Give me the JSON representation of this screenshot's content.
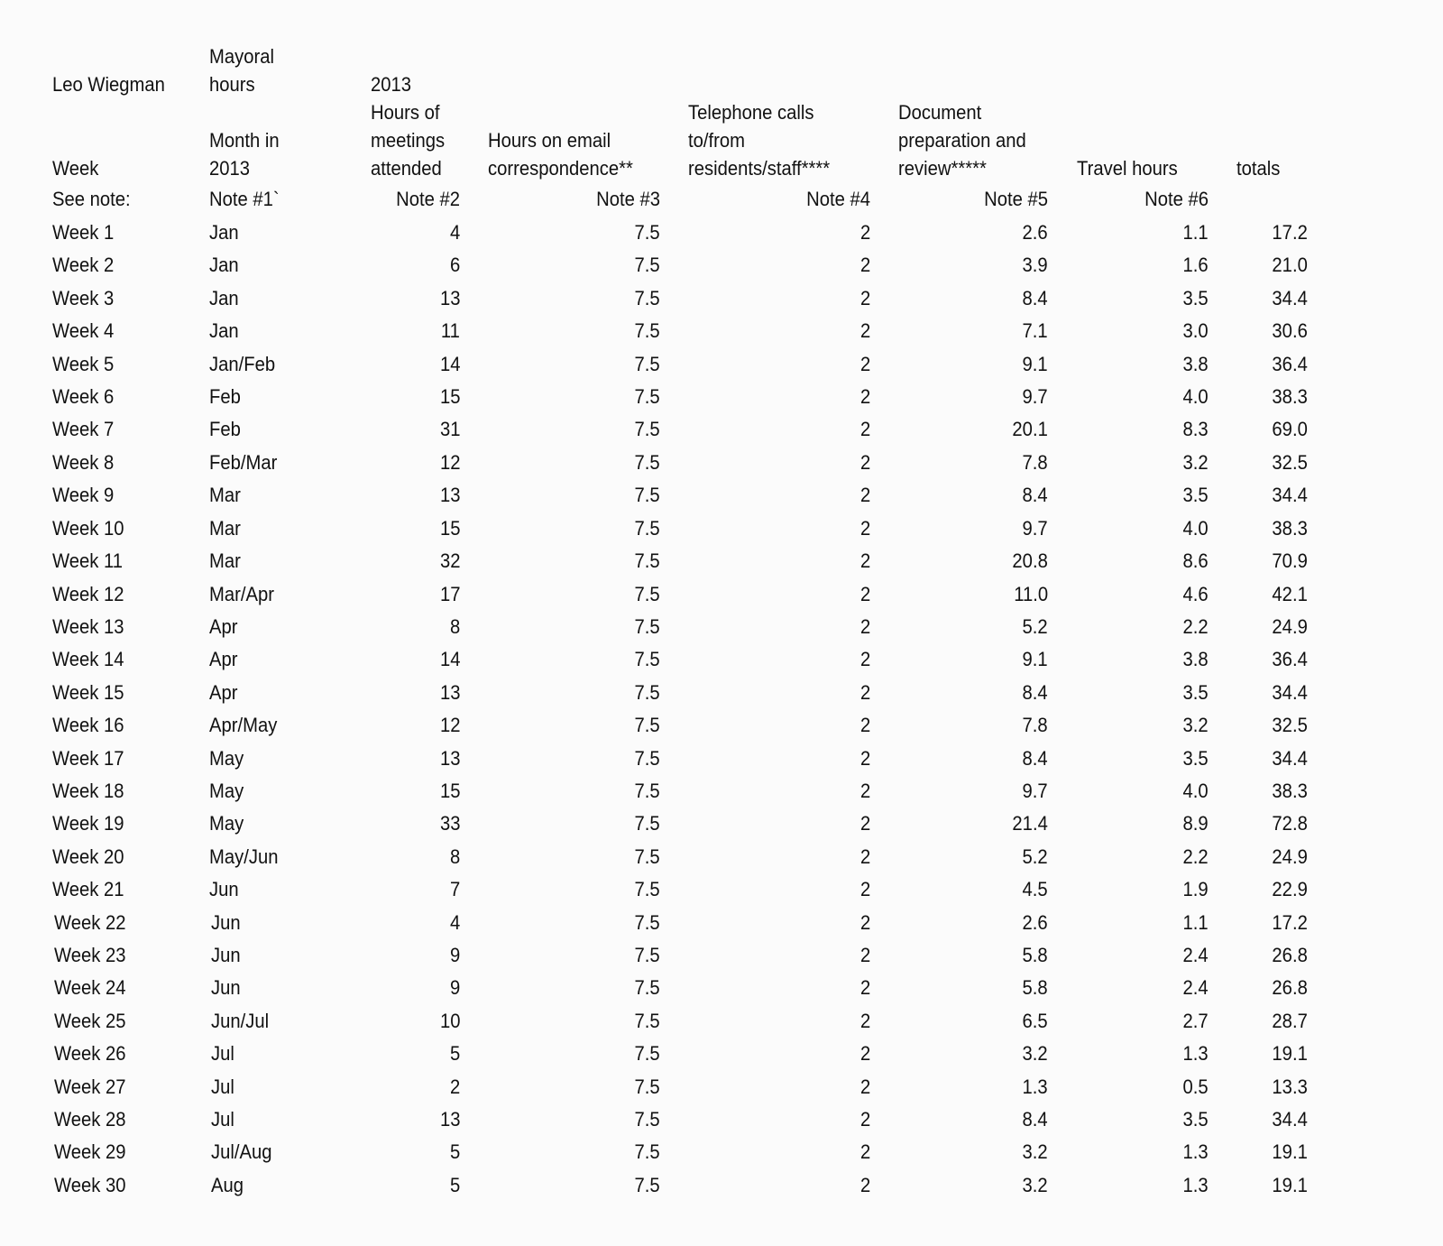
{
  "header": {
    "name": "Leo Wiegman",
    "mayoral_hours": "Mayoral\nhours",
    "week": "Week",
    "month": "Month in\n2013",
    "meetings": "2013\nHours of\nmeetings\nattended",
    "email": "Hours on email\ncorrespondence**",
    "phone": "Telephone calls\nto/from\nresidents/staff****",
    "document": "Document\npreparation and\nreview*****",
    "travel": "Travel hours",
    "totals": "totals"
  },
  "notes": {
    "label": "See note:",
    "month": "Note #1`",
    "meetings": "Note #2",
    "email": "Note #3",
    "phone": "Note #4",
    "document": "Note #5",
    "travel": "Note #6"
  },
  "rows": [
    [
      "Week 1",
      "Jan",
      "4",
      "7.5",
      "2",
      "2.6",
      "1.1",
      "17.2"
    ],
    [
      "Week 2",
      "Jan",
      "6",
      "7.5",
      "2",
      "3.9",
      "1.6",
      "21.0"
    ],
    [
      "Week 3",
      "Jan",
      "13",
      "7.5",
      "2",
      "8.4",
      "3.5",
      "34.4"
    ],
    [
      "Week 4",
      "Jan",
      "11",
      "7.5",
      "2",
      "7.1",
      "3.0",
      "30.6"
    ],
    [
      "Week 5",
      "Jan/Feb",
      "14",
      "7.5",
      "2",
      "9.1",
      "3.8",
      "36.4"
    ],
    [
      "Week 6",
      "Feb",
      "15",
      "7.5",
      "2",
      "9.7",
      "4.0",
      "38.3"
    ],
    [
      "Week 7",
      "Feb",
      "31",
      "7.5",
      "2",
      "20.1",
      "8.3",
      "69.0"
    ],
    [
      "Week 8",
      "Feb/Mar",
      "12",
      "7.5",
      "2",
      "7.8",
      "3.2",
      "32.5"
    ],
    [
      "Week 9",
      "Mar",
      "13",
      "7.5",
      "2",
      "8.4",
      "3.5",
      "34.4"
    ],
    [
      "Week 10",
      "Mar",
      "15",
      "7.5",
      "2",
      "9.7",
      "4.0",
      "38.3"
    ],
    [
      "Week 11",
      "Mar",
      "32",
      "7.5",
      "2",
      "20.8",
      "8.6",
      "70.9"
    ],
    [
      "Week 12",
      "Mar/Apr",
      "17",
      "7.5",
      "2",
      "11.0",
      "4.6",
      "42.1"
    ],
    [
      "Week 13",
      "Apr",
      "8",
      "7.5",
      "2",
      "5.2",
      "2.2",
      "24.9"
    ],
    [
      "Week 14",
      "Apr",
      "14",
      "7.5",
      "2",
      "9.1",
      "3.8",
      "36.4"
    ],
    [
      "Week 15",
      "Apr",
      "13",
      "7.5",
      "2",
      "8.4",
      "3.5",
      "34.4"
    ],
    [
      "Week 16",
      "Apr/May",
      "12",
      "7.5",
      "2",
      "7.8",
      "3.2",
      "32.5"
    ],
    [
      "Week 17",
      "May",
      "13",
      "7.5",
      "2",
      "8.4",
      "3.5",
      "34.4"
    ],
    [
      "Week 18",
      "May",
      "15",
      "7.5",
      "2",
      "9.7",
      "4.0",
      "38.3"
    ],
    [
      "Week 19",
      "May",
      "33",
      "7.5",
      "2",
      "21.4",
      "8.9",
      "72.8"
    ],
    [
      "Week 20",
      "May/Jun",
      "8",
      "7.5",
      "2",
      "5.2",
      "2.2",
      "24.9"
    ],
    [
      "Week 21",
      "Jun",
      "7",
      "7.5",
      "2",
      "4.5",
      "1.9",
      "22.9"
    ],
    [
      "Week 22",
      "Jun",
      "4",
      "7.5",
      "2",
      "2.6",
      "1.1",
      "17.2"
    ],
    [
      "Week 23",
      "Jun",
      "9",
      "7.5",
      "2",
      "5.8",
      "2.4",
      "26.8"
    ],
    [
      "Week 24",
      "Jun",
      "9",
      "7.5",
      "2",
      "5.8",
      "2.4",
      "26.8"
    ],
    [
      "Week 25",
      "Jun/Jul",
      "10",
      "7.5",
      "2",
      "6.5",
      "2.7",
      "28.7"
    ],
    [
      "Week 26",
      "Jul",
      "5",
      "7.5",
      "2",
      "3.2",
      "1.3",
      "19.1"
    ],
    [
      "Week 27",
      "Jul",
      "2",
      "7.5",
      "2",
      "1.3",
      "0.5",
      "13.3"
    ],
    [
      "Week 28",
      "Jul",
      "13",
      "7.5",
      "2",
      "8.4",
      "3.5",
      "34.4"
    ],
    [
      "Week 29",
      "Jul/Aug",
      "5",
      "7.5",
      "2",
      "3.2",
      "1.3",
      "19.1"
    ],
    [
      "Week 30",
      "Aug",
      "5",
      "7.5",
      "2",
      "3.2",
      "1.3",
      "19.1"
    ]
  ]
}
